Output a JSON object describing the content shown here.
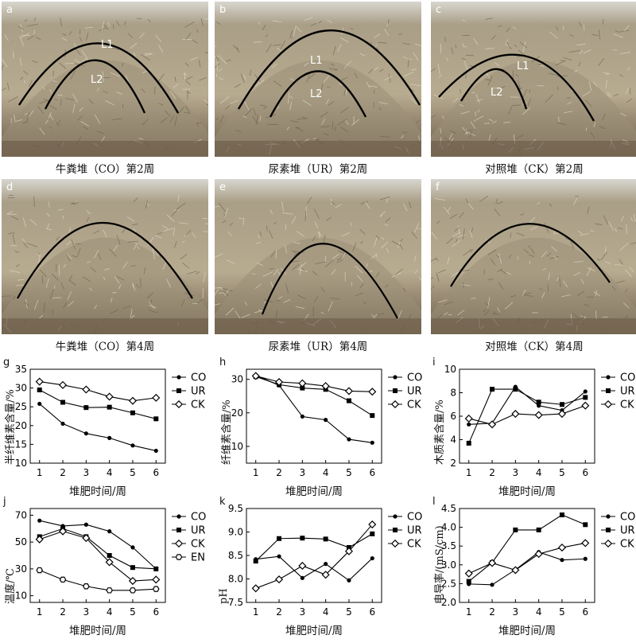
{
  "figure": {
    "photos": [
      {
        "label": "a",
        "caption": "牛粪堆（CO）第2周",
        "arcs": [
          "L1",
          "L2"
        ]
      },
      {
        "label": "b",
        "caption": "尿素堆（UR）第2周",
        "arcs": [
          "L1",
          "L2"
        ]
      },
      {
        "label": "c",
        "caption": "对照堆（CK）第2周",
        "arcs": [
          "L1",
          "L2"
        ]
      },
      {
        "label": "d",
        "caption": "牛粪堆（CO）第4周",
        "arcs": []
      },
      {
        "label": "e",
        "caption": "尿素堆（UR）第4周",
        "arcs": []
      },
      {
        "label": "f",
        "caption": "对照堆（CK）第4周",
        "arcs": []
      }
    ],
    "colors": {
      "sky": "#d8d6cf",
      "straw": "#b7ab90",
      "soil": "#6a5a47",
      "line": "#000000"
    }
  },
  "chart_data": [
    {
      "id": "g",
      "type": "line",
      "ylabel": "半纤维素含量/%",
      "xlabel": "堆肥时间/周",
      "x": [
        1,
        2,
        3,
        4,
        5,
        6
      ],
      "ylim": [
        10,
        35
      ],
      "yticks": [
        10,
        15,
        20,
        25,
        30,
        35
      ],
      "series": [
        {
          "name": "CO",
          "marker": "circle",
          "values": [
            25.8,
            20.5,
            17.9,
            16.7,
            14.7,
            13.3
          ]
        },
        {
          "name": "UR",
          "marker": "square",
          "values": [
            29.5,
            26.2,
            24.8,
            24.9,
            23.4,
            21.8
          ]
        },
        {
          "name": "CK",
          "marker": "diamond",
          "values": [
            31.7,
            30.8,
            29.6,
            27.7,
            26.6,
            27.4
          ]
        }
      ]
    },
    {
      "id": "h",
      "type": "line",
      "ylabel": "纤维素含量/%",
      "xlabel": "堆肥时间/周",
      "x": [
        1,
        2,
        3,
        4,
        5,
        6
      ],
      "ylim": [
        5,
        33
      ],
      "yticks": [
        10,
        20,
        30
      ],
      "series": [
        {
          "name": "CO",
          "marker": "circle",
          "values": [
            31.2,
            28.2,
            18.9,
            17.9,
            12.1,
            11.1
          ]
        },
        {
          "name": "UR",
          "marker": "square",
          "values": [
            30.8,
            28.4,
            27.4,
            27.0,
            23.6,
            19.2
          ]
        },
        {
          "name": "CK",
          "marker": "diamond",
          "values": [
            31.0,
            29.2,
            28.8,
            28.0,
            26.5,
            26.3
          ]
        }
      ]
    },
    {
      "id": "i",
      "type": "line",
      "ylabel": "木质素含量/%",
      "xlabel": "堆肥时间/周",
      "x": [
        1,
        2,
        3,
        4,
        5,
        6
      ],
      "ylim": [
        2,
        10
      ],
      "yticks": [
        2,
        4,
        6,
        8,
        10
      ],
      "series": [
        {
          "name": "CO",
          "marker": "circle",
          "values": [
            5.3,
            5.4,
            8.5,
            6.9,
            6.5,
            8.1
          ]
        },
        {
          "name": "UR",
          "marker": "square",
          "values": [
            3.7,
            8.3,
            8.3,
            7.2,
            7.0,
            7.6
          ]
        },
        {
          "name": "CK",
          "marker": "diamond",
          "values": [
            5.8,
            5.3,
            6.2,
            6.1,
            6.2,
            6.9
          ]
        }
      ]
    },
    {
      "id": "j",
      "type": "line",
      "ylabel": "温度/℃",
      "xlabel": "堆肥时间/周",
      "x": [
        1,
        2,
        3,
        4,
        5,
        6
      ],
      "ylim": [
        5,
        75
      ],
      "yticks": [
        10,
        30,
        50,
        70
      ],
      "series": [
        {
          "name": "CO",
          "marker": "circle",
          "values": [
            66,
            62,
            63,
            58,
            46,
            30
          ]
        },
        {
          "name": "UR",
          "marker": "square",
          "values": [
            54,
            60,
            54,
            40,
            31,
            30
          ]
        },
        {
          "name": "CK",
          "marker": "diamond",
          "values": [
            52,
            58,
            53,
            35,
            21,
            22
          ]
        },
        {
          "name": "EN",
          "marker": "hex",
          "values": [
            29,
            22,
            17,
            14,
            14,
            15
          ]
        }
      ]
    },
    {
      "id": "k",
      "type": "line",
      "ylabel": "pH",
      "xlabel": "堆肥时间/周",
      "x": [
        1,
        2,
        3,
        4,
        5,
        6
      ],
      "ylim": [
        7.5,
        9.5
      ],
      "yticks": [
        7.5,
        8.0,
        8.5,
        9.0,
        9.5
      ],
      "series": [
        {
          "name": "CO",
          "marker": "circle",
          "values": [
            8.42,
            8.48,
            8.02,
            8.32,
            7.97,
            8.44
          ]
        },
        {
          "name": "UR",
          "marker": "square",
          "values": [
            8.38,
            8.86,
            8.87,
            8.85,
            8.67,
            8.96
          ]
        },
        {
          "name": "CK",
          "marker": "diamond",
          "values": [
            7.8,
            7.99,
            8.28,
            8.09,
            8.59,
            9.16
          ]
        }
      ]
    },
    {
      "id": "l",
      "type": "line",
      "ylabel": "电导率/(mS/cm)",
      "xlabel": "堆肥时间/周",
      "x": [
        1,
        2,
        3,
        4,
        5,
        6
      ],
      "ylim": [
        2.0,
        4.5
      ],
      "yticks": [
        2.0,
        2.5,
        3.0,
        3.5,
        4.0,
        4.5
      ],
      "series": [
        {
          "name": "CO",
          "marker": "circle",
          "values": [
            2.49,
            2.47,
            2.87,
            3.34,
            3.13,
            3.16
          ]
        },
        {
          "name": "UR",
          "marker": "square",
          "values": [
            2.56,
            3.06,
            3.93,
            3.93,
            4.33,
            4.07
          ]
        },
        {
          "name": "CK",
          "marker": "diamond",
          "values": [
            2.77,
            3.05,
            2.86,
            3.29,
            3.46,
            3.58
          ]
        }
      ]
    }
  ]
}
